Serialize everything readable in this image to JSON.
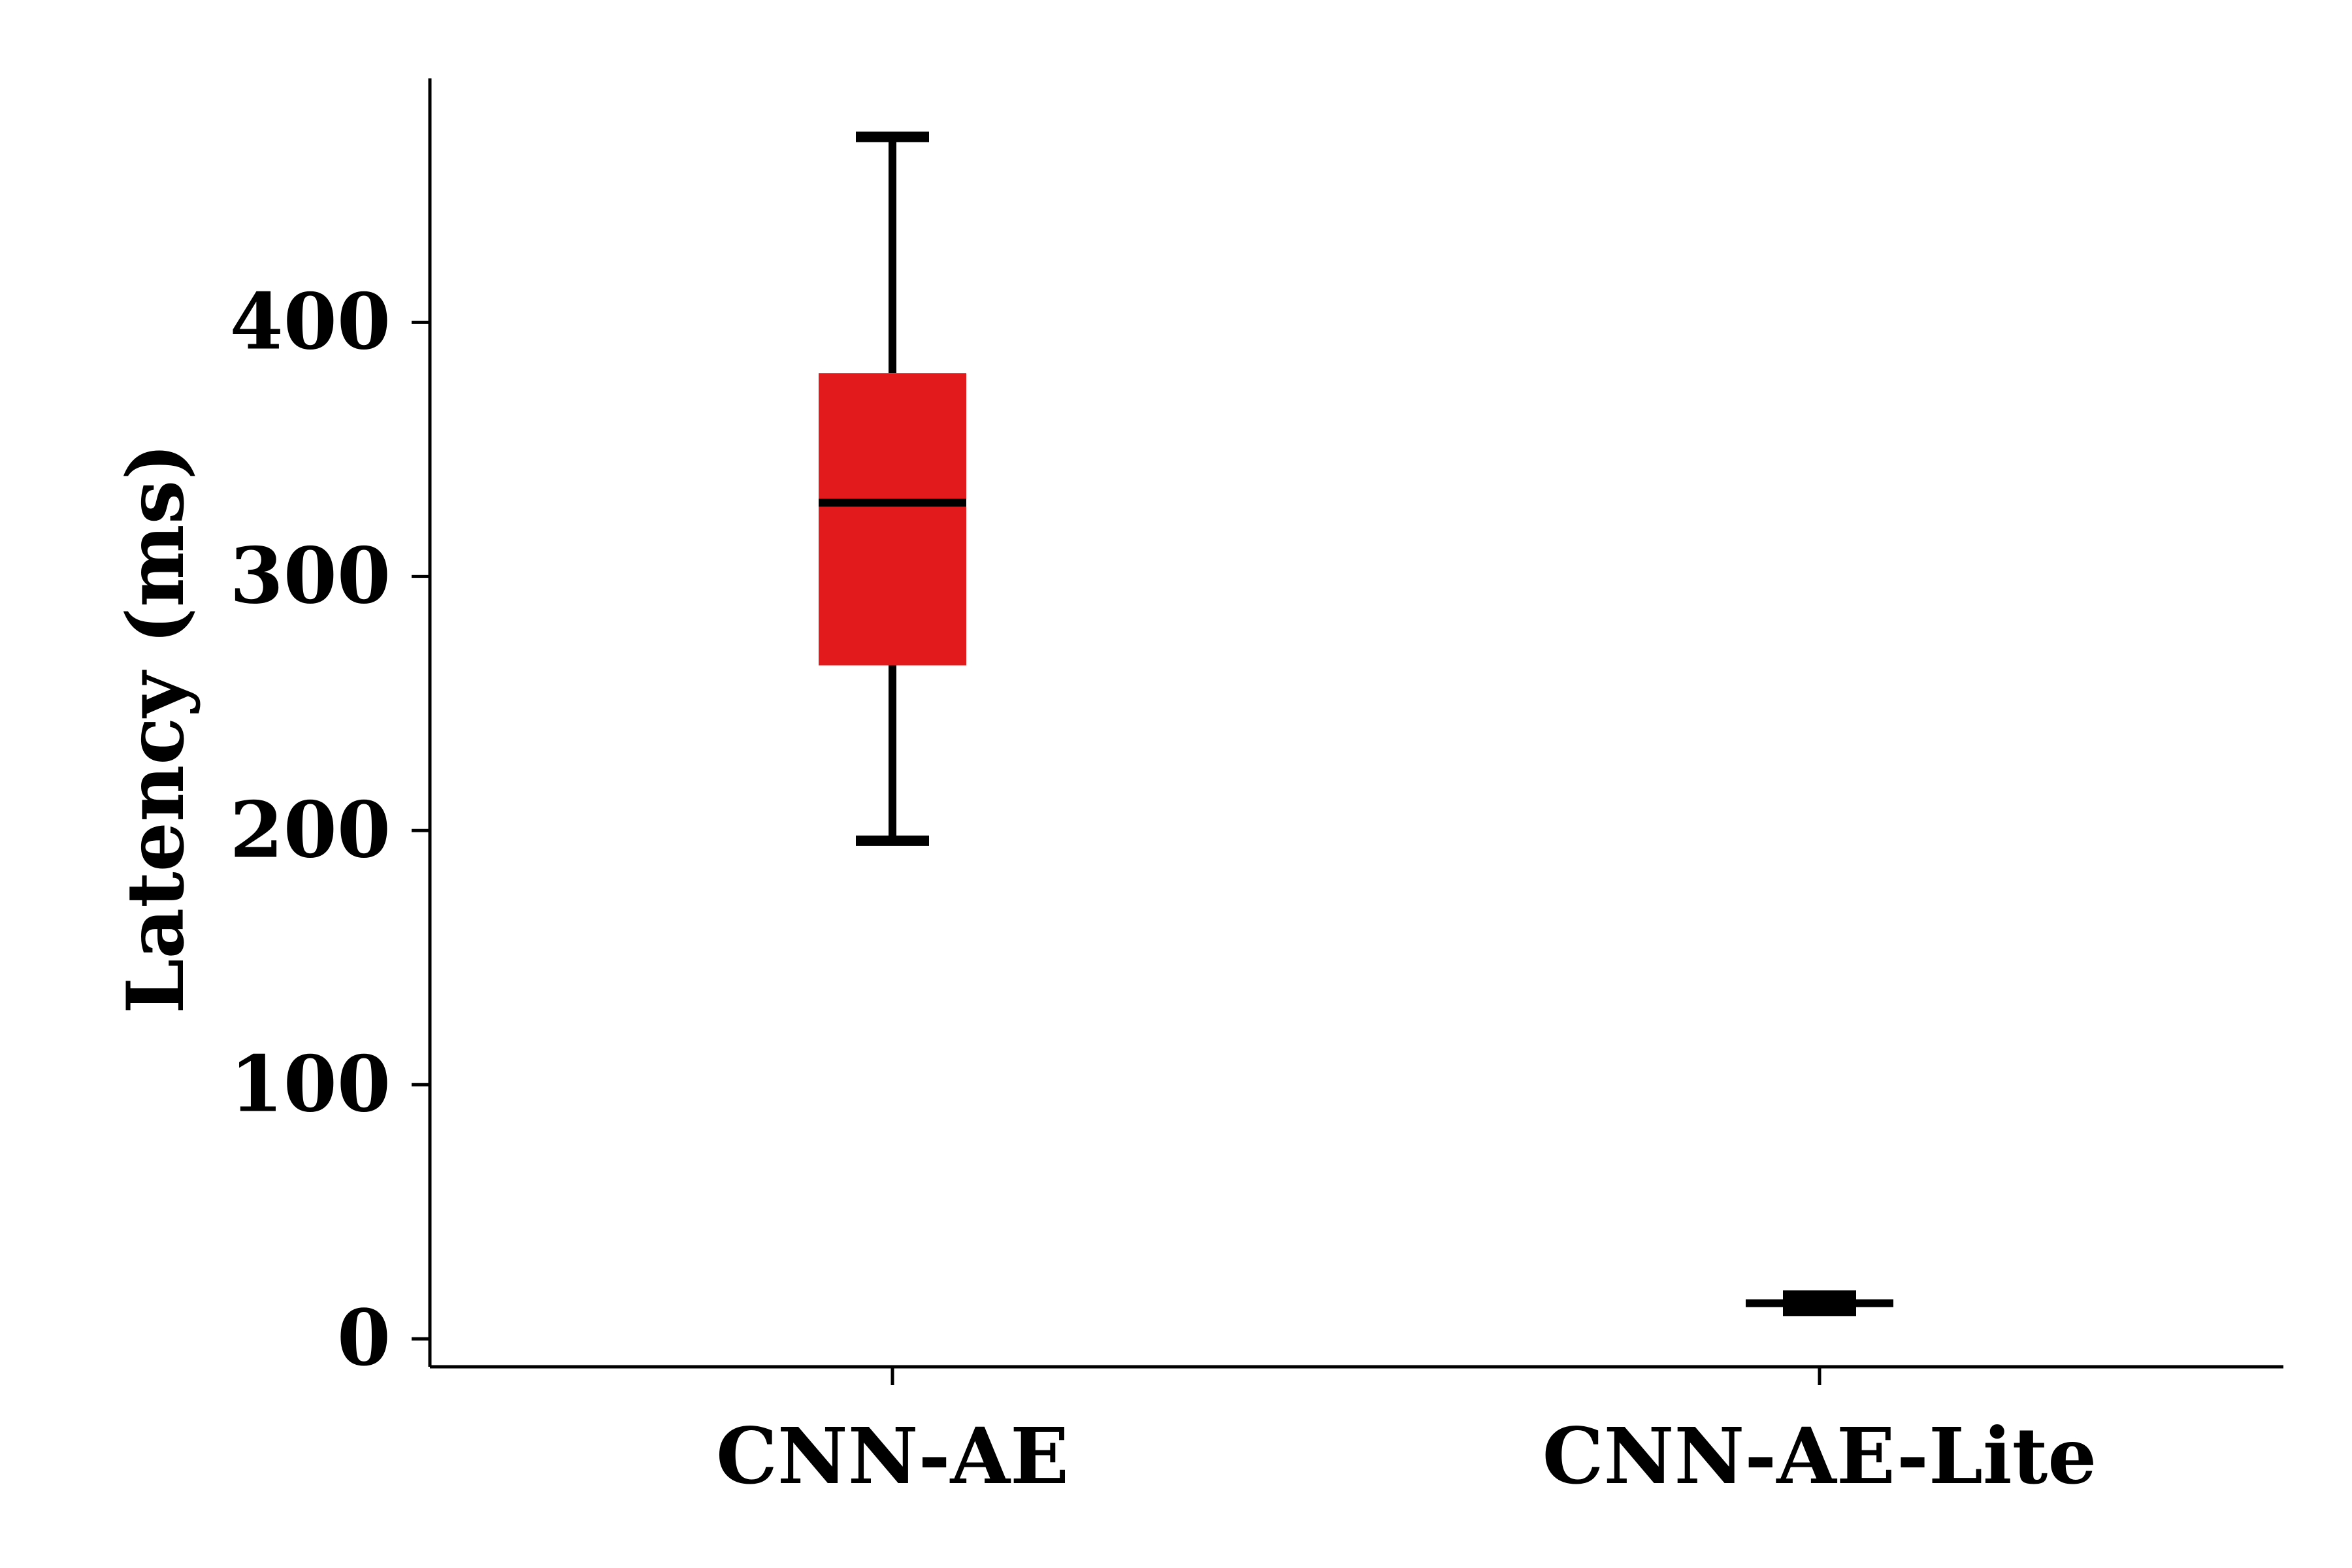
{
  "chart_data": {
    "type": "box",
    "ylabel": "Latency (ms)",
    "xlabel": "",
    "ylim": [
      -11,
      496
    ],
    "yticks": [
      0,
      100,
      200,
      300,
      400
    ],
    "grid": false,
    "categories": [
      "CNN-AE",
      "CNN-AE-Lite"
    ],
    "boxes": [
      {
        "category": "CNN-AE",
        "whisker_low": 196,
        "q1": 265,
        "median": 329,
        "q3": 380,
        "whisker_high": 473,
        "color": "#e31a1c"
      },
      {
        "category": "CNN-AE-Lite",
        "whisker_low": 11,
        "q1": 13,
        "median": 14,
        "q3": 15,
        "whisker_high": 17,
        "color": "#1f78b4"
      }
    ]
  }
}
